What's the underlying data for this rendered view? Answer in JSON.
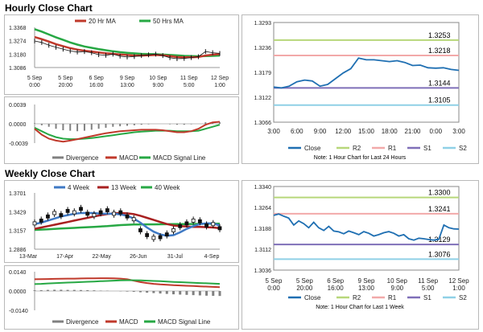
{
  "titles": {
    "hourly": "Hourly Close Chart",
    "weekly": "Weekly Close Chart"
  },
  "colors": {
    "ma_short": "#c0392b",
    "ma_long": "#27a844",
    "price": "#111111",
    "divergence": "#808080",
    "macd": "#c0392b",
    "signal": "#27a844",
    "close": "#1f6fb2",
    "r2": "#b7d77a",
    "r1": "#f2a9a9",
    "s1": "#7f6fb8",
    "s2": "#8fd0e6",
    "week4": "#3f79c4",
    "week13": "#a82020",
    "week40": "#27a844"
  },
  "chart_data": [
    {
      "id": "hourly_price",
      "type": "line",
      "legend": [
        "20 Hr MA",
        "50 Hrs MA"
      ],
      "yticks": [
        "1.3368",
        "1.3274",
        "1.3180",
        "1.3086"
      ],
      "ylim": [
        1.3086,
        1.3368
      ],
      "xticks": [
        "5 Sep\n0:00",
        "5 Sep\n20:00",
        "6 Sep\n16:00",
        "9 Sep\n13:00",
        "10 Sep\n9:00",
        "11 Sep\n5:00",
        "12 Sep\n1:00"
      ],
      "series": [
        {
          "name": "Price",
          "values": [
            1.3272,
            1.3262,
            1.3242,
            1.3228,
            1.3215,
            1.3202,
            1.3195,
            1.3198,
            1.319,
            1.3176,
            1.3172,
            1.318,
            1.3166,
            1.316,
            1.3163,
            1.317,
            1.3175,
            1.318,
            1.317,
            1.3155,
            1.3148,
            1.315,
            1.3156,
            1.3162,
            1.3198,
            1.319,
            1.3185
          ]
        },
        {
          "name": "20 Hr MA",
          "values": [
            1.33,
            1.3285,
            1.3268,
            1.325,
            1.3236,
            1.3222,
            1.3212,
            1.3204,
            1.3198,
            1.3192,
            1.3186,
            1.3182,
            1.3178,
            1.3174,
            1.317,
            1.317,
            1.3172,
            1.3174,
            1.3172,
            1.3166,
            1.316,
            1.3158,
            1.3158,
            1.316,
            1.317,
            1.3176,
            1.318
          ]
        },
        {
          "name": "50 Hrs MA",
          "values": [
            1.3355,
            1.3338,
            1.3318,
            1.3298,
            1.328,
            1.3262,
            1.3247,
            1.3234,
            1.3224,
            1.3215,
            1.3207,
            1.32,
            1.3194,
            1.3189,
            1.3185,
            1.3182,
            1.318,
            1.3179,
            1.3177,
            1.3174,
            1.3171,
            1.3168,
            1.3166,
            1.3165,
            1.3166,
            1.3168,
            1.317
          ]
        }
      ]
    },
    {
      "id": "hourly_macd",
      "type": "line",
      "legend": [
        "Divergence",
        "MACD",
        "MACD Signal Line"
      ],
      "yticks": [
        "0.0039",
        "0.0000",
        "-0.0039"
      ],
      "ylim": [
        -0.0039,
        0.0039
      ],
      "divergence": [
        0.0001,
        -0.0003,
        -0.0006,
        -0.001,
        -0.0013,
        -0.0014,
        -0.0015,
        -0.0014,
        -0.0012,
        -0.001,
        -0.0008,
        -0.0006,
        -0.0005,
        -0.0004,
        -0.0003,
        -0.0002,
        -0.0001,
        0.0,
        0.0,
        -0.0001,
        -0.0002,
        -0.0002,
        -0.0001,
        0.0,
        0.0003,
        0.0004,
        0.0003
      ],
      "series": [
        {
          "name": "MACD",
          "values": [
            -0.001,
            -0.0022,
            -0.003,
            -0.0034,
            -0.0036,
            -0.0034,
            -0.0031,
            -0.0028,
            -0.0025,
            -0.0022,
            -0.0019,
            -0.0017,
            -0.0015,
            -0.0014,
            -0.0013,
            -0.0012,
            -0.0012,
            -0.0012,
            -0.0013,
            -0.0015,
            -0.0017,
            -0.0017,
            -0.0015,
            -0.001,
            -0.0002,
            0.0003,
            0.0004
          ]
        },
        {
          "name": "MACD Signal Line",
          "values": [
            -0.0008,
            -0.0015,
            -0.0022,
            -0.0027,
            -0.003,
            -0.0031,
            -0.0031,
            -0.003,
            -0.0029,
            -0.0027,
            -0.0025,
            -0.0023,
            -0.0021,
            -0.0019,
            -0.0017,
            -0.0016,
            -0.0015,
            -0.0014,
            -0.0014,
            -0.0014,
            -0.0015,
            -0.0015,
            -0.0015,
            -0.0014,
            -0.001,
            -0.0006,
            -0.0002
          ]
        }
      ]
    },
    {
      "id": "hourly_close_24h",
      "type": "line",
      "yticks": [
        "1.3293",
        "1.3236",
        "1.3179",
        "1.3122",
        "1.3066"
      ],
      "ylim": [
        1.3066,
        1.3293
      ],
      "xticks": [
        "3:00",
        "6:00",
        "9:00",
        "12:00",
        "15:00",
        "18:00",
        "21:00",
        "0:00",
        "3:00"
      ],
      "levels": [
        {
          "name": "R2",
          "value": 1.3253,
          "label": "1.3253"
        },
        {
          "name": "R1",
          "value": 1.3218,
          "label": "1.3218"
        },
        {
          "name": "S1",
          "value": 1.3144,
          "label": "1.3144"
        },
        {
          "name": "S2",
          "value": 1.3105,
          "label": "1.3105"
        }
      ],
      "legend": [
        "Close",
        "R2",
        "R1",
        "S1",
        "S2"
      ],
      "note": "Note: 1 Hour Chart for Last 24 Hours",
      "series": [
        {
          "name": "Close",
          "values": [
            1.3146,
            1.3144,
            1.3148,
            1.3158,
            1.3162,
            1.316,
            1.3148,
            1.3152,
            1.3165,
            1.3178,
            1.3188,
            1.3212,
            1.3208,
            1.3208,
            1.3206,
            1.3204,
            1.3206,
            1.3202,
            1.3195,
            1.3196,
            1.319,
            1.3189,
            1.319,
            1.3186,
            1.3184
          ]
        }
      ]
    },
    {
      "id": "weekly_price",
      "type": "line",
      "legend": [
        "4 Week",
        "13 Week",
        "40 Week"
      ],
      "yticks": [
        "1.3701",
        "1.3429",
        "1.3157",
        "1.2886"
      ],
      "ylim": [
        1.2886,
        1.3701
      ],
      "xticks": [
        "13-Mar",
        "17-Apr",
        "22-May",
        "26-Jun",
        "31-Jul",
        "4-Sep"
      ],
      "series": [
        {
          "name": "Price",
          "values": [
            1.326,
            1.33,
            1.336,
            1.341,
            1.338,
            1.344,
            1.342,
            1.347,
            1.34,
            1.338,
            1.342,
            1.345,
            1.34,
            1.342,
            1.336,
            1.332,
            1.316,
            1.309,
            1.305,
            1.306,
            1.31,
            1.316,
            1.322,
            1.326,
            1.33,
            1.329,
            1.323,
            1.325,
            1.319
          ]
        },
        {
          "name": "4 Week",
          "values": [
            1.325,
            1.327,
            1.33,
            1.333,
            1.336,
            1.338,
            1.34,
            1.341,
            1.341,
            1.341,
            1.34,
            1.34,
            1.34,
            1.339,
            1.337,
            1.333,
            1.327,
            1.32,
            1.314,
            1.31,
            1.308,
            1.309,
            1.313,
            1.318,
            1.322,
            1.325,
            1.326,
            1.326,
            1.323
          ]
        },
        {
          "name": "13 Week",
          "values": [
            1.318,
            1.32,
            1.322,
            1.324,
            1.326,
            1.328,
            1.33,
            1.332,
            1.334,
            1.336,
            1.338,
            1.3395,
            1.3405,
            1.341,
            1.3405,
            1.3395,
            1.337,
            1.334,
            1.331,
            1.328,
            1.325,
            1.323,
            1.322,
            1.3215,
            1.321,
            1.321,
            1.3205,
            1.32,
            1.319
          ]
        },
        {
          "name": "40 Week",
          "values": [
            1.3165,
            1.317,
            1.3175,
            1.318,
            1.3185,
            1.319,
            1.3195,
            1.32,
            1.3205,
            1.321,
            1.3215,
            1.322,
            1.3228,
            1.3235,
            1.324,
            1.3243,
            1.3245,
            1.3246,
            1.3246,
            1.3247,
            1.3248,
            1.3249,
            1.325,
            1.3251,
            1.3252,
            1.3253,
            1.3254,
            1.3255,
            1.3256
          ]
        }
      ]
    },
    {
      "id": "weekly_macd",
      "type": "line",
      "legend": [
        "Divergence",
        "MACD",
        "MACD Signal Line"
      ],
      "yticks": [
        "0.0140",
        "0.0000",
        "-0.0140"
      ],
      "ylim": [
        -0.014,
        0.014
      ],
      "divergence": [
        0.0005,
        0.0006,
        0.0008,
        0.0009,
        0.0009,
        0.0008,
        0.0008,
        0.0007,
        0.0006,
        0.0005,
        0.0003,
        0.0002,
        0.0,
        -0.0002,
        -0.0004,
        -0.0006,
        -0.0009,
        -0.0012,
        -0.0015,
        -0.0018,
        -0.0021,
        -0.0024,
        -0.0026,
        -0.0028,
        -0.003,
        -0.0032,
        -0.0034,
        -0.0035,
        -0.0036
      ],
      "series": [
        {
          "name": "MACD",
          "values": [
            0.0085,
            0.0086,
            0.0087,
            0.0088,
            0.0089,
            0.009,
            0.009,
            0.0091,
            0.0092,
            0.0092,
            0.0093,
            0.0093,
            0.0092,
            0.009,
            0.0085,
            0.0075,
            0.0065,
            0.0058,
            0.0052,
            0.0048,
            0.0045,
            0.0042,
            0.004,
            0.0038,
            0.0036,
            0.0034,
            0.0032,
            0.003,
            0.0028
          ]
        },
        {
          "name": "MACD Signal Line",
          "values": [
            0.005,
            0.0052,
            0.0055,
            0.0057,
            0.0059,
            0.0061,
            0.0063,
            0.0065,
            0.0067,
            0.0069,
            0.0071,
            0.0073,
            0.0075,
            0.0077,
            0.0078,
            0.0078,
            0.0077,
            0.0075,
            0.0073,
            0.0071,
            0.0068,
            0.0066,
            0.0064,
            0.0062,
            0.006,
            0.0058,
            0.0056,
            0.0054,
            0.0052
          ]
        }
      ]
    },
    {
      "id": "weekly_close_1w",
      "type": "line",
      "yticks": [
        "1.3340",
        "1.3264",
        "1.3188",
        "1.3112",
        "1.3036"
      ],
      "ylim": [
        1.3036,
        1.334
      ],
      "xticks": [
        "5 Sep\n0:00",
        "5 Sep\n20:00",
        "6 Sep\n16:00",
        "9 Sep\n13:00",
        "10 Sep\n9:00",
        "11 Sep\n5:00",
        "12 Sep\n1:00"
      ],
      "levels": [
        {
          "name": "R2",
          "value": 1.33,
          "label": "1.3300"
        },
        {
          "name": "R1",
          "value": 1.3241,
          "label": "1.3241"
        },
        {
          "name": "S1",
          "value": 1.3129,
          "label": "1.3129"
        },
        {
          "name": "S2",
          "value": 1.3076,
          "label": "1.3076"
        }
      ],
      "legend": [
        "Close",
        "R2",
        "R1",
        "S1",
        "S2"
      ],
      "note": "Note: 1 Hour Chart for Last 1 Week",
      "series": [
        {
          "name": "Close",
          "values": [
            1.3235,
            1.324,
            1.3232,
            1.3225,
            1.32,
            1.3215,
            1.3205,
            1.319,
            1.321,
            1.319,
            1.318,
            1.3195,
            1.3178,
            1.3175,
            1.3168,
            1.3178,
            1.3172,
            1.3165,
            1.3176,
            1.317,
            1.316,
            1.3165,
            1.3172,
            1.3176,
            1.317,
            1.316,
            1.3165,
            1.315,
            1.3145,
            1.3152,
            1.315,
            1.3147,
            1.3145,
            1.3148,
            1.32,
            1.319,
            1.3186,
            1.3185
          ]
        }
      ]
    }
  ]
}
